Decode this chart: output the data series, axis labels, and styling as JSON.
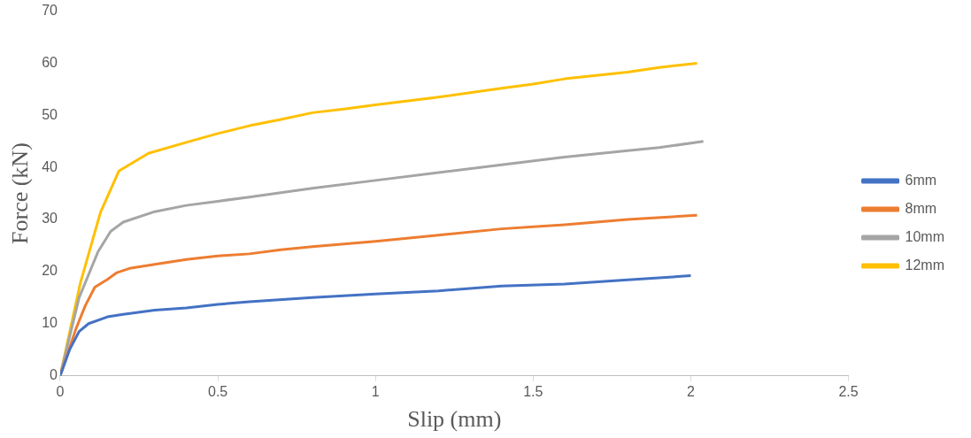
{
  "chart_data": {
    "type": "line",
    "xlabel": "Slip (mm)",
    "ylabel": "Force (kN)",
    "xlim": [
      0,
      2.5
    ],
    "xticks": [
      0,
      {
        "value": 0.5,
        "label": "0.5"
      },
      1,
      {
        "value": 1.5,
        "label": "1.5"
      },
      2,
      {
        "value": 2.5,
        "label": "2.5"
      }
    ],
    "ylim": [
      0,
      70
    ],
    "yticks": [
      0,
      10,
      20,
      30,
      40,
      50,
      60,
      70
    ],
    "grid": false,
    "legend": "right",
    "marker": "none",
    "line_style": "solid",
    "series": [
      {
        "name": "6mm",
        "color": "#4472c4",
        "x": [
          0,
          0.03,
          0.06,
          0.09,
          0.15,
          0.2,
          0.3,
          0.4,
          0.5,
          0.6,
          0.8,
          1.0,
          1.2,
          1.4,
          1.6,
          1.8,
          2.0
        ],
        "values": [
          0,
          5,
          8.5,
          10,
          11.3,
          11.8,
          12.6,
          13,
          13.7,
          14.2,
          15,
          15.7,
          16.3,
          17.2,
          17.6,
          18.4,
          19.2
        ]
      },
      {
        "name": "8mm",
        "color": "#ed7d31",
        "x": [
          0,
          0.05,
          0.08,
          0.11,
          0.15,
          0.18,
          0.22,
          0.3,
          0.4,
          0.5,
          0.6,
          0.7,
          0.8,
          1.0,
          1.2,
          1.4,
          1.6,
          1.8,
          2.02
        ],
        "values": [
          0,
          9,
          13.5,
          17,
          18.5,
          19.8,
          20.6,
          21.4,
          22.3,
          23,
          23.4,
          24.2,
          24.8,
          25.8,
          27,
          28.2,
          29,
          30,
          30.8
        ]
      },
      {
        "name": "10mm",
        "color": "#a5a5a5",
        "x": [
          0,
          0.06,
          0.12,
          0.16,
          0.2,
          0.3,
          0.4,
          0.5,
          0.6,
          0.8,
          1.0,
          1.2,
          1.4,
          1.6,
          1.8,
          1.9,
          2.04
        ],
        "values": [
          0,
          15,
          23.8,
          27.7,
          29.5,
          31.5,
          32.7,
          33.5,
          34.3,
          36,
          37.5,
          39,
          40.5,
          42,
          43.2,
          43.8,
          45
        ]
      },
      {
        "name": "12mm",
        "color": "#ffc000",
        "x": [
          0,
          0.064,
          0.128,
          0.186,
          0.28,
          0.4,
          0.5,
          0.6,
          0.7,
          0.8,
          0.9,
          1.0,
          1.2,
          1.4,
          1.5,
          1.6,
          1.8,
          1.9,
          2.02
        ],
        "values": [
          0,
          17.8,
          31.4,
          39.3,
          42.7,
          44.8,
          46.5,
          48,
          49.2,
          50.5,
          51.2,
          52,
          53.5,
          55.2,
          56,
          57,
          58.3,
          59.2,
          60
        ]
      }
    ]
  }
}
